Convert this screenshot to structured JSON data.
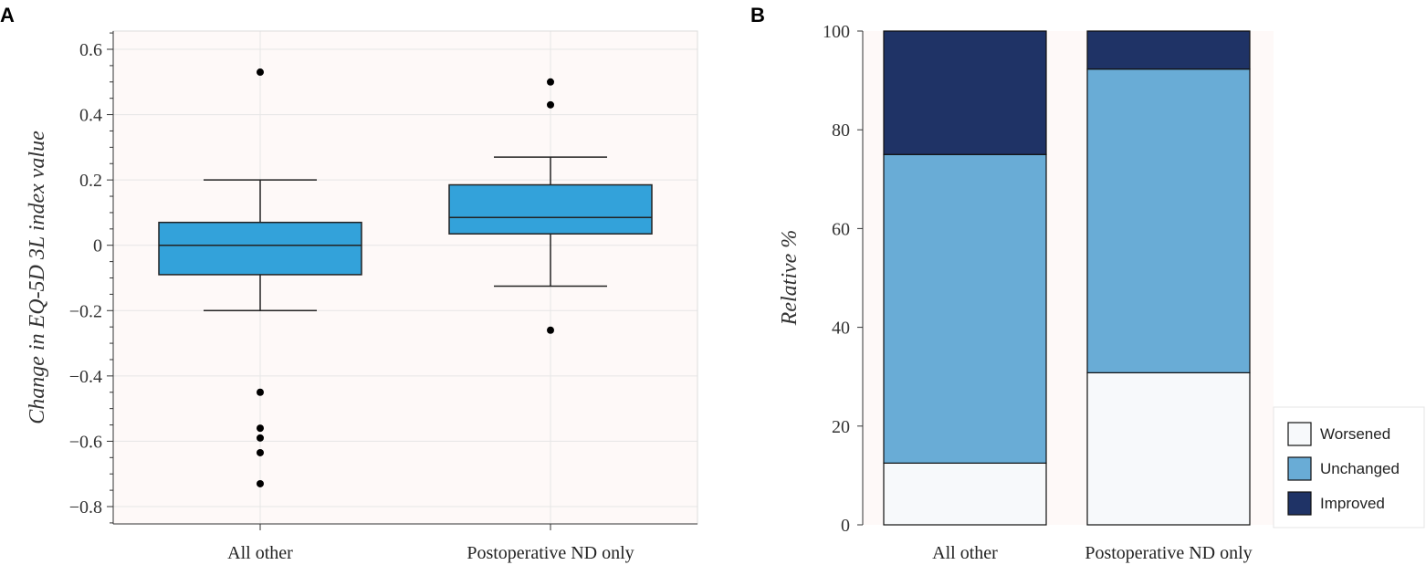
{
  "chart_data": [
    {
      "panel": "A",
      "type": "box",
      "title": "",
      "xlabel": "",
      "ylabel": "Change in EQ-5D 3L index value",
      "ylim": [
        -0.85,
        0.65
      ],
      "yticks": [
        -0.8,
        -0.6,
        -0.4,
        -0.2,
        0,
        0.2,
        0.4,
        0.6
      ],
      "ytick_labels": [
        "−0.8",
        "−0.6",
        "−0.4",
        "−0.2",
        "0",
        "0.2",
        "0.4",
        "0.6"
      ],
      "grid": true,
      "categories": [
        "All other",
        "Postoperative ND only"
      ],
      "boxes": [
        {
          "name": "All other",
          "whisker_low": -0.2,
          "q1": -0.09,
          "median": 0.0,
          "q3": 0.07,
          "whisker_high": 0.2,
          "outliers": [
            0.53,
            -0.45,
            -0.56,
            -0.59,
            -0.635,
            -0.73
          ]
        },
        {
          "name": "Postoperative ND only",
          "whisker_low": -0.125,
          "q1": 0.035,
          "median": 0.085,
          "q3": 0.185,
          "whisker_high": 0.27,
          "outliers": [
            0.5,
            0.43,
            -0.26
          ]
        }
      ],
      "colors": {
        "box": "#33a2da",
        "background": "#fef9f8",
        "grid": "#e6e6e6"
      }
    },
    {
      "panel": "B",
      "type": "stacked_bar",
      "title": "",
      "xlabel": "",
      "ylabel": "Relative %",
      "ylim": [
        0,
        100
      ],
      "yticks": [
        0,
        20,
        40,
        60,
        80,
        100
      ],
      "ytick_labels": [
        "0",
        "20",
        "40",
        "60",
        "80",
        "100"
      ],
      "grid": false,
      "categories": [
        "All other",
        "Postoperative ND only"
      ],
      "series": [
        {
          "name": "Worsened",
          "values": [
            12.5,
            30.8
          ],
          "color": "#f7f9fb"
        },
        {
          "name": "Unchanged",
          "values": [
            62.5,
            61.5
          ],
          "color": "#69acd6"
        },
        {
          "name": "Improved",
          "values": [
            25.0,
            7.7
          ],
          "color": "#1f3366"
        }
      ],
      "legend": {
        "position": "right",
        "items": [
          "Worsened",
          "Unchanged",
          "Improved"
        ]
      },
      "colors": {
        "background": "#fef9f8"
      }
    }
  ]
}
